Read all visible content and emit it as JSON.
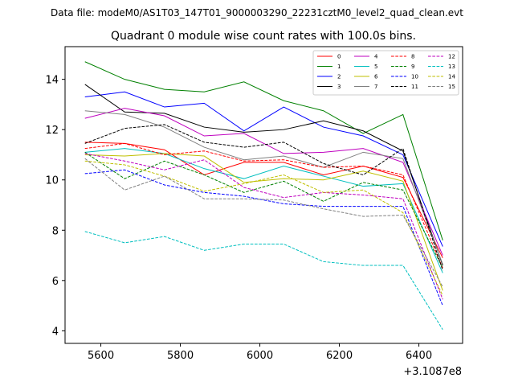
{
  "chart_data": {
    "type": "line",
    "suptitle": "Data file: modeM0/AS1T03_147T01_9000003290_22231cztM0_level2_quad_clean.evt",
    "title": "Quadrant 0 module wise count rates with 100.0s bins.",
    "xlabel": "",
    "ylabel": "",
    "x_offset_label": "+3.1087e8",
    "x": [
      5560,
      5660,
      5760,
      5860,
      5960,
      6060,
      6160,
      6260,
      6360,
      6460
    ],
    "xlim": [
      5510,
      6510
    ],
    "ylim": [
      3.5,
      15.3
    ],
    "xticks": [
      5600,
      5800,
      6000,
      6200,
      6400
    ],
    "xtick_labels": [
      "5600",
      "5800",
      "6000",
      "6200",
      "6400"
    ],
    "yticks": [
      4,
      6,
      8,
      10,
      12,
      14
    ],
    "ytick_labels": [
      "4",
      "6",
      "8",
      "10",
      "12",
      "14"
    ],
    "grid": false,
    "legend_position": "top-right",
    "series": [
      {
        "name": "0",
        "color": "#ff0000",
        "dash": "solid",
        "values": [
          11.5,
          11.45,
          11.2,
          10.2,
          10.7,
          10.7,
          10.2,
          10.55,
          10.1,
          6.9
        ]
      },
      {
        "name": "1",
        "color": "#008000",
        "dash": "solid",
        "values": [
          14.7,
          14.0,
          13.6,
          13.5,
          13.9,
          13.15,
          12.75,
          11.85,
          12.6,
          7.6
        ]
      },
      {
        "name": "2",
        "color": "#0000ff",
        "dash": "solid",
        "values": [
          13.3,
          13.5,
          12.9,
          13.05,
          11.95,
          12.9,
          12.1,
          11.75,
          11.0,
          7.35
        ]
      },
      {
        "name": "3",
        "color": "#000000",
        "dash": "solid",
        "values": [
          13.8,
          12.7,
          12.65,
          12.1,
          11.9,
          12.0,
          12.35,
          11.95,
          11.15,
          6.6
        ]
      },
      {
        "name": "4",
        "color": "#bf00bf",
        "dash": "solid",
        "values": [
          12.45,
          12.85,
          12.55,
          11.75,
          11.85,
          11.05,
          11.1,
          11.25,
          10.7,
          7.0
        ]
      },
      {
        "name": "5",
        "color": "#00bfbf",
        "dash": "solid",
        "values": [
          11.1,
          11.25,
          11.05,
          10.45,
          10.05,
          10.55,
          10.15,
          9.75,
          9.85,
          6.3
        ]
      },
      {
        "name": "6",
        "color": "#bfbf00",
        "dash": "solid",
        "values": [
          11.0,
          10.95,
          11.05,
          10.95,
          9.9,
          10.05,
          10.0,
          10.35,
          9.95,
          5.6
        ]
      },
      {
        "name": "7",
        "color": "#808080",
        "dash": "solid",
        "values": [
          12.75,
          12.6,
          12.1,
          11.3,
          10.8,
          10.95,
          10.5,
          11.1,
          10.85,
          6.65
        ]
      },
      {
        "name": "8",
        "color": "#ff0000",
        "dash": "dashed",
        "values": [
          11.25,
          11.45,
          11.0,
          11.15,
          10.75,
          10.8,
          10.5,
          10.55,
          10.2,
          6.5
        ]
      },
      {
        "name": "9",
        "color": "#008000",
        "dash": "dashed",
        "values": [
          11.1,
          10.05,
          10.75,
          10.2,
          9.5,
          9.95,
          9.15,
          9.9,
          9.6,
          6.5
        ]
      },
      {
        "name": "10",
        "color": "#0000ff",
        "dash": "dashed",
        "values": [
          10.25,
          10.4,
          9.8,
          9.5,
          9.35,
          9.05,
          8.95,
          8.95,
          8.95,
          5.0
        ]
      },
      {
        "name": "11",
        "color": "#000000",
        "dash": "dashed",
        "values": [
          11.45,
          12.05,
          12.2,
          11.5,
          11.3,
          11.5,
          10.65,
          10.2,
          11.25,
          6.4
        ]
      },
      {
        "name": "12",
        "color": "#bf00bf",
        "dash": "dashed",
        "values": [
          11.05,
          10.75,
          10.4,
          10.8,
          9.7,
          9.3,
          9.5,
          9.4,
          9.25,
          5.25
        ]
      },
      {
        "name": "13",
        "color": "#00bfbf",
        "dash": "dashed",
        "values": [
          7.95,
          7.5,
          7.75,
          7.2,
          7.45,
          7.45,
          6.75,
          6.6,
          6.6,
          4.05
        ]
      },
      {
        "name": "14",
        "color": "#bfbf00",
        "dash": "dashed",
        "values": [
          10.75,
          10.6,
          10.15,
          9.55,
          9.85,
          10.2,
          9.5,
          9.6,
          8.7,
          5.4
        ]
      },
      {
        "name": "15",
        "color": "#808080",
        "dash": "dashed",
        "values": [
          10.85,
          9.6,
          10.15,
          9.25,
          9.25,
          9.2,
          8.85,
          8.55,
          8.6,
          5.75
        ]
      }
    ]
  }
}
